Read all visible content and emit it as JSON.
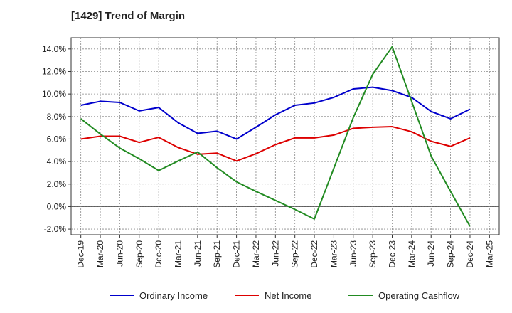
{
  "chart_data": {
    "type": "line",
    "title": "[1429]  Trend of Margin",
    "xlabel": "",
    "ylabel": "",
    "ylim": [
      -2.5,
      15.0
    ],
    "yticks": [
      -2.0,
      0.0,
      2.0,
      4.0,
      6.0,
      8.0,
      10.0,
      12.0,
      14.0
    ],
    "ytick_labels": [
      "-2.0%",
      "0.0%",
      "2.0%",
      "4.0%",
      "6.0%",
      "8.0%",
      "10.0%",
      "12.0%",
      "14.0%"
    ],
    "x_tick_labels": [
      "Dec-19",
      "Mar-20",
      "Jun-20",
      "Sep-20",
      "Dec-20",
      "Mar-21",
      "Jun-21",
      "Sep-21",
      "Dec-21",
      "Mar-22",
      "Jun-22",
      "Sep-22",
      "Dec-22",
      "Mar-23",
      "Jun-23",
      "Sep-23",
      "Dec-23",
      "Mar-24",
      "Jun-24",
      "Sep-24",
      "Dec-24",
      "Mar-25"
    ],
    "grid": true,
    "legend_position": "bottom",
    "series": [
      {
        "name": "Ordinary Income",
        "color": "#0000cc",
        "x": [
          "Dec-19",
          "Mar-20",
          "Jun-20",
          "Sep-20",
          "Dec-20",
          "Mar-21",
          "Jun-21",
          "Sep-21",
          "Dec-21",
          "Mar-22",
          "Jun-22",
          "Sep-22",
          "Dec-22",
          "Mar-23",
          "Jun-23",
          "Sep-23",
          "Dec-23",
          "Mar-24",
          "Jun-24",
          "Sep-24",
          "Dec-24"
        ],
        "values": [
          9.0,
          9.35,
          9.25,
          8.5,
          8.8,
          7.45,
          6.5,
          6.7,
          6.0,
          7.05,
          8.15,
          9.0,
          9.2,
          9.7,
          10.45,
          10.6,
          10.3,
          9.7,
          8.45,
          7.8,
          8.65
        ]
      },
      {
        "name": "Net Income",
        "color": "#dd0000",
        "x": [
          "Dec-19",
          "Mar-20",
          "Jun-20",
          "Sep-20",
          "Dec-20",
          "Mar-21",
          "Jun-21",
          "Sep-21",
          "Dec-21",
          "Mar-22",
          "Jun-22",
          "Sep-22",
          "Dec-22",
          "Mar-23",
          "Jun-23",
          "Sep-23",
          "Dec-23",
          "Mar-24",
          "Jun-24",
          "Sep-24",
          "Dec-24"
        ],
        "values": [
          6.0,
          6.25,
          6.25,
          5.7,
          6.15,
          5.25,
          4.65,
          4.75,
          4.05,
          4.7,
          5.5,
          6.1,
          6.1,
          6.35,
          6.95,
          7.05,
          7.1,
          6.65,
          5.8,
          5.35,
          6.1
        ]
      },
      {
        "name": "Operating Cashflow",
        "color": "#228b22",
        "x": [
          "Dec-19",
          "Mar-20",
          "Jun-20",
          "Sep-20",
          "Dec-20",
          "Mar-21",
          "Jun-21",
          "Sep-21",
          "Dec-21",
          "Mar-22",
          "Jun-22",
          "Sep-22",
          "Dec-22",
          "Mar-23",
          "Jun-23",
          "Sep-23",
          "Dec-23",
          "Mar-24",
          "Jun-24",
          "Sep-24",
          "Dec-24"
        ],
        "values": [
          7.8,
          6.45,
          5.2,
          4.25,
          3.2,
          4.05,
          4.85,
          3.45,
          2.2,
          1.35,
          0.55,
          -0.25,
          -1.1,
          3.4,
          7.9,
          11.75,
          14.2,
          9.35,
          4.5,
          1.35,
          -1.75
        ]
      }
    ]
  }
}
